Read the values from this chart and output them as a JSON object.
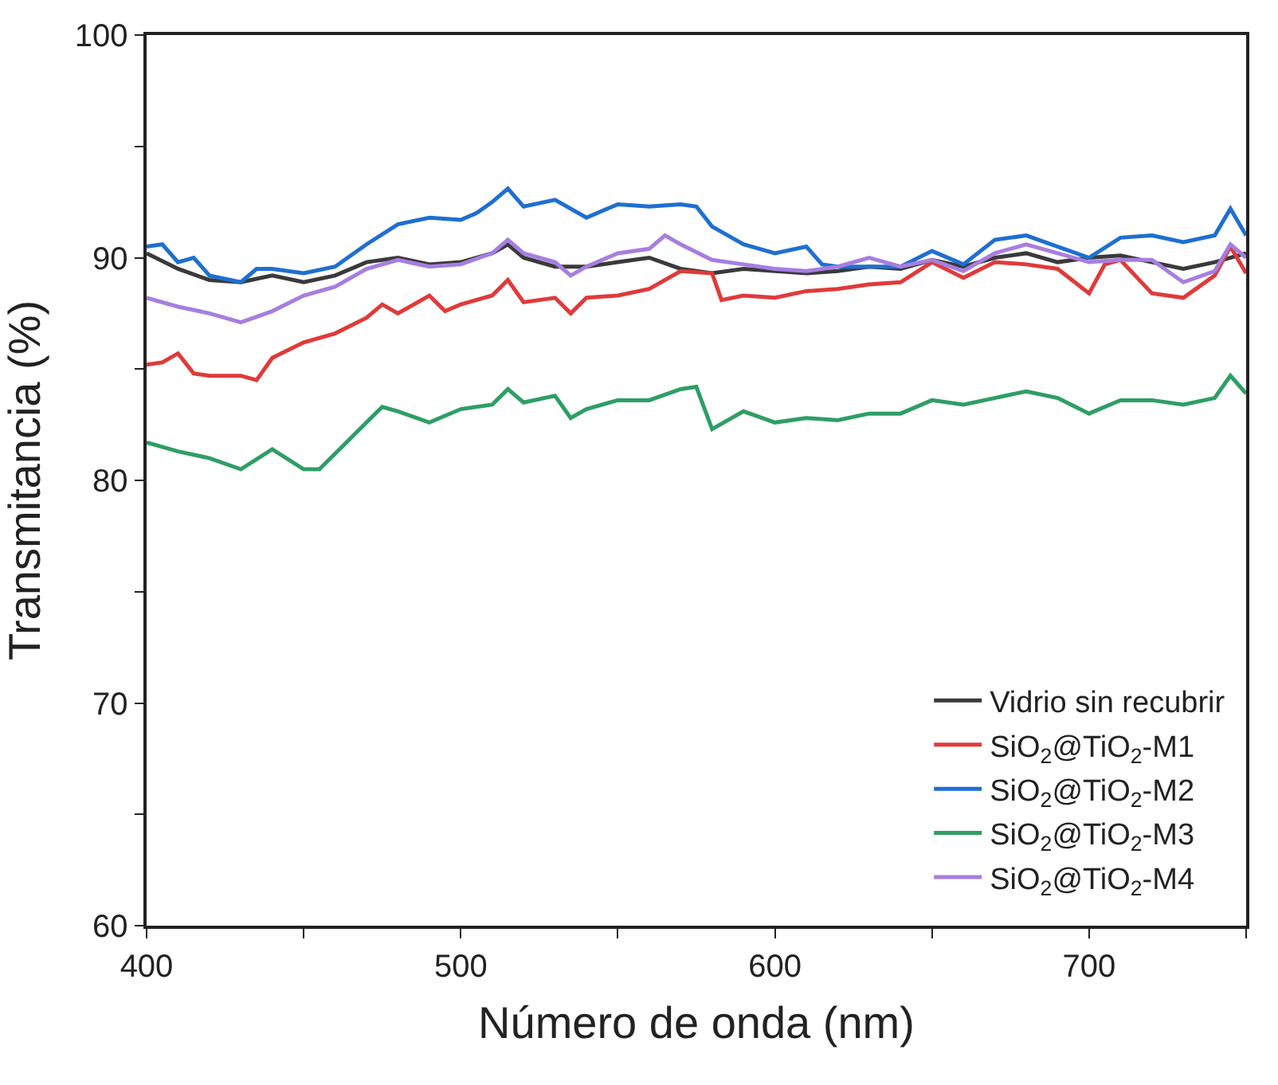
{
  "chart_data": {
    "type": "line",
    "xlabel": "Número de onda (nm)",
    "ylabel": "Transmitancia (%)",
    "xlim": [
      400,
      750
    ],
    "ylim": [
      60,
      100
    ],
    "xticks": [
      400,
      {
        "value": 450,
        "label": null
      },
      500,
      {
        "value": 550,
        "label": null
      },
      600,
      {
        "value": 650,
        "label": null
      },
      700,
      {
        "value": 750,
        "label": null
      }
    ],
    "yticks": [
      60,
      {
        "value": 65,
        "label": null
      },
      70,
      {
        "value": 75,
        "label": null
      },
      80,
      {
        "value": 85,
        "label": null
      },
      90,
      {
        "value": 95,
        "label": null
      },
      100
    ],
    "legend": "bottom right",
    "marker": "none",
    "line_style": "solid",
    "series": [
      {
        "name": "Vidrio sin recubrir",
        "color": "#3a3a3a",
        "x": [
          400,
          410,
          420,
          430,
          440,
          450,
          460,
          470,
          480,
          490,
          500,
          510,
          515,
          520,
          530,
          540,
          550,
          560,
          570,
          580,
          590,
          600,
          610,
          620,
          630,
          640,
          650,
          660,
          670,
          680,
          690,
          700,
          710,
          720,
          730,
          740,
          750
        ],
        "values": [
          90.2,
          89.5,
          89,
          88.9,
          89.2,
          88.9,
          89.2,
          89.8,
          90,
          89.7,
          89.8,
          90.2,
          90.6,
          90,
          89.6,
          89.6,
          89.8,
          90,
          89.5,
          89.3,
          89.5,
          89.4,
          89.3,
          89.4,
          89.6,
          89.5,
          89.9,
          89.6,
          90,
          90.2,
          89.8,
          90,
          90.1,
          89.8,
          89.5,
          89.8,
          90.2
        ]
      },
      {
        "name": "SiO$_{2}$@TiO$_{2}$-M1",
        "color": "#e03a3a",
        "x": [
          400,
          405,
          410,
          415,
          420,
          430,
          435,
          440,
          450,
          460,
          470,
          475,
          480,
          490,
          495,
          500,
          510,
          515,
          520,
          530,
          535,
          540,
          550,
          560,
          570,
          580,
          583,
          590,
          600,
          610,
          620,
          630,
          640,
          650,
          660,
          670,
          680,
          690,
          700,
          705,
          710,
          720,
          730,
          740,
          745,
          750
        ],
        "values": [
          85.2,
          85.3,
          85.7,
          84.8,
          84.7,
          84.7,
          84.5,
          85.5,
          86.2,
          86.6,
          87.3,
          87.9,
          87.5,
          88.3,
          87.6,
          87.9,
          88.3,
          89,
          88,
          88.2,
          87.5,
          88.2,
          88.3,
          88.6,
          89.4,
          89.3,
          88.1,
          88.3,
          88.2,
          88.5,
          88.6,
          88.8,
          88.9,
          89.8,
          89.1,
          89.8,
          89.7,
          89.5,
          88.4,
          89.7,
          89.9,
          88.4,
          88.2,
          89.2,
          90.5,
          89.3
        ]
      },
      {
        "name": "SiO$_{2}$@TiO$_{2}$-M2",
        "color": "#1f6fd0",
        "x": [
          400,
          405,
          410,
          415,
          420,
          430,
          435,
          440,
          450,
          460,
          470,
          480,
          490,
          500,
          505,
          510,
          515,
          520,
          530,
          540,
          550,
          560,
          570,
          575,
          580,
          590,
          600,
          610,
          615,
          620,
          630,
          640,
          650,
          660,
          670,
          680,
          690,
          700,
          710,
          720,
          730,
          740,
          745,
          750
        ],
        "values": [
          90.5,
          90.6,
          89.8,
          90,
          89.2,
          88.9,
          89.5,
          89.5,
          89.3,
          89.6,
          90.6,
          91.5,
          91.8,
          91.7,
          92,
          92.5,
          93.1,
          92.3,
          92.6,
          91.8,
          92.4,
          92.3,
          92.4,
          92.3,
          91.4,
          90.6,
          90.2,
          90.5,
          89.7,
          89.6,
          89.6,
          89.6,
          90.3,
          89.7,
          90.8,
          91,
          90.5,
          90,
          90.9,
          91,
          90.7,
          91,
          92.2,
          91
        ]
      },
      {
        "name": "SiO$_{2}$@TiO$_{2}$-M3",
        "color": "#2e9e66",
        "x": [
          400,
          410,
          420,
          430,
          440,
          450,
          455,
          460,
          470,
          475,
          480,
          490,
          500,
          510,
          515,
          520,
          530,
          535,
          540,
          550,
          560,
          570,
          575,
          580,
          590,
          600,
          610,
          620,
          630,
          640,
          650,
          660,
          670,
          680,
          690,
          700,
          710,
          720,
          730,
          740,
          745,
          750
        ],
        "values": [
          81.7,
          81.3,
          81,
          80.5,
          81.4,
          80.5,
          80.5,
          81.2,
          82.6,
          83.3,
          83.1,
          82.6,
          83.2,
          83.4,
          84.1,
          83.5,
          83.8,
          82.8,
          83.2,
          83.6,
          83.6,
          84.1,
          84.2,
          82.3,
          83.1,
          82.6,
          82.8,
          82.7,
          83,
          83,
          83.6,
          83.4,
          83.7,
          84,
          83.7,
          83,
          83.6,
          83.6,
          83.4,
          83.7,
          84.7,
          83.9
        ]
      },
      {
        "name": "SiO$_{2}$@TiO$_{2}$-M4",
        "color": "#a77ee0",
        "x": [
          400,
          410,
          420,
          430,
          440,
          450,
          460,
          470,
          480,
          490,
          500,
          510,
          515,
          520,
          530,
          535,
          540,
          550,
          560,
          565,
          570,
          580,
          590,
          600,
          610,
          620,
          630,
          640,
          650,
          660,
          670,
          680,
          690,
          700,
          710,
          720,
          730,
          740,
          745,
          750
        ],
        "values": [
          88.2,
          87.8,
          87.5,
          87.1,
          87.6,
          88.3,
          88.7,
          89.5,
          89.9,
          89.6,
          89.7,
          90.2,
          90.8,
          90.2,
          89.8,
          89.2,
          89.6,
          90.2,
          90.4,
          91,
          90.6,
          89.9,
          89.7,
          89.5,
          89.4,
          89.6,
          90,
          89.6,
          89.9,
          89.4,
          90.2,
          90.6,
          90.2,
          89.8,
          89.9,
          89.9,
          88.9,
          89.4,
          90.6,
          90
        ]
      }
    ]
  }
}
